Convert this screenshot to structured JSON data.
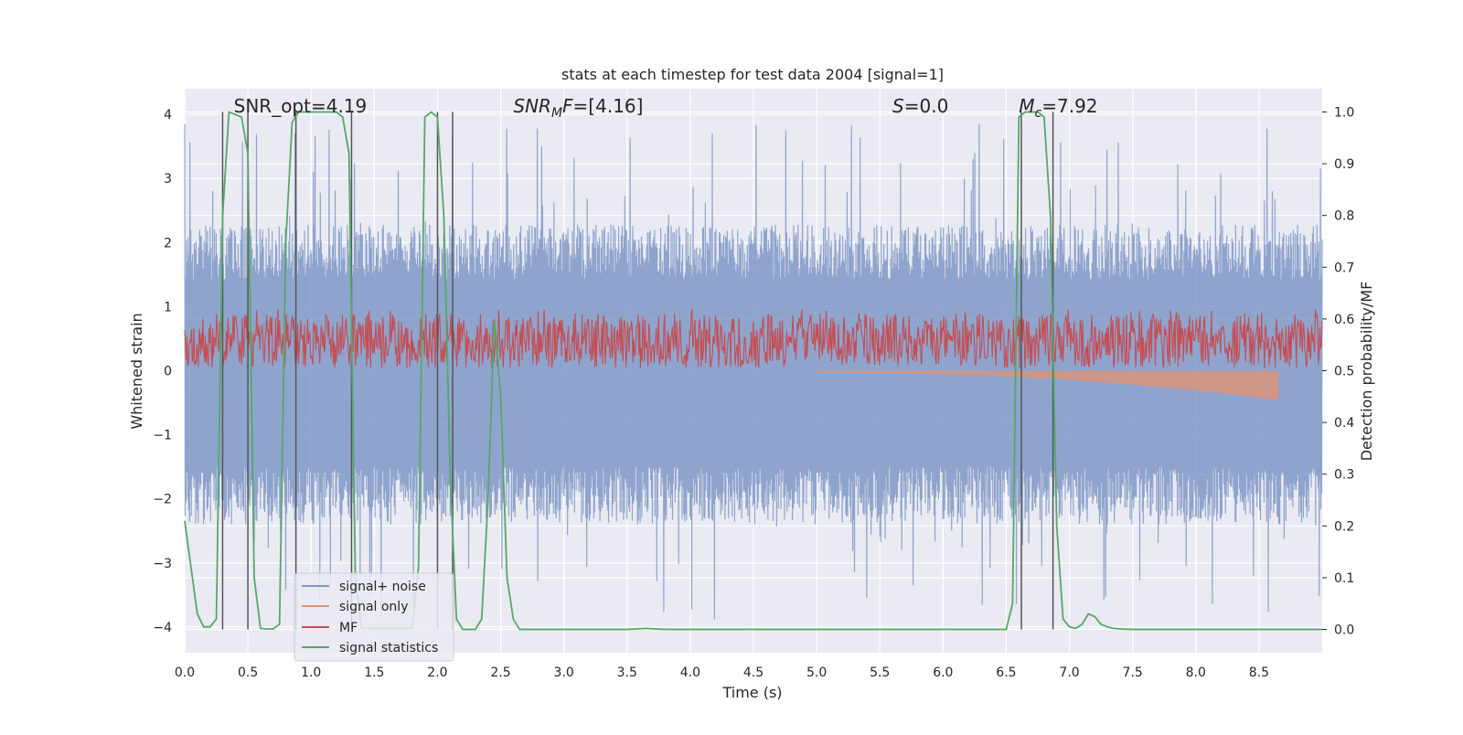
{
  "chart_data": {
    "type": "line",
    "title": "stats at each timestep for test data 2004 [signal=1]",
    "xlabel": "Time (s)",
    "ylabel_left": "Whitened strain",
    "ylabel_right": "Detection probability/MF",
    "xlim": [
      0,
      9.0
    ],
    "ylim_left": [
      -4.4,
      4.4
    ],
    "ylim_right": [
      -0.045,
      1.045
    ],
    "x_ticks": [
      "0.0",
      "0.5",
      "1.0",
      "1.5",
      "2.0",
      "2.5",
      "3.0",
      "3.5",
      "4.0",
      "4.5",
      "5.0",
      "5.5",
      "6.0",
      "6.5",
      "7.0",
      "7.5",
      "8.0",
      "8.5"
    ],
    "y_ticks_left": [
      "4",
      "3",
      "2",
      "1",
      "0",
      "−1",
      "−2",
      "−3",
      "−4"
    ],
    "y_ticks_right": [
      "1.0",
      "0.9",
      "0.8",
      "0.7",
      "0.6",
      "0.5",
      "0.4",
      "0.3",
      "0.2",
      "0.1",
      "0.0"
    ],
    "grid": true,
    "legend_position": "lower-left",
    "annotations": [
      {
        "text": "SNR_opt=4.19",
        "x": 0.2
      },
      {
        "text": "SNR_MF=[4.16]",
        "x": 2.6,
        "math": "snrmf"
      },
      {
        "text": "S=0.0",
        "x": 5.6,
        "math": "s"
      },
      {
        "text": "M_c=7.92",
        "x": 6.6,
        "math": "mc"
      }
    ],
    "vertical_lines": [
      0.3,
      0.5,
      0.88,
      1.32,
      2.0,
      2.12,
      6.62,
      6.87
    ],
    "series": [
      {
        "name": "signal+ noise",
        "axis": "left",
        "color": "#7f98c7",
        "envelope": {
          "pos_typical": 1.9,
          "pos_peak": 3.9,
          "neg_typical": -2.0,
          "neg_peak": -3.9
        }
      },
      {
        "name": "signal only",
        "axis": "left",
        "color": "#d9957b",
        "chirp": {
          "start": 5.0,
          "end": 8.65,
          "min_amplitude": 0.02,
          "max_amplitude": 0.45
        }
      },
      {
        "name": "MF",
        "axis": "right",
        "color": "#c44e52",
        "band": {
          "low": 0.505,
          "high": 0.61,
          "peak": 0.62
        }
      },
      {
        "name": "signal statistics",
        "axis": "right",
        "color": "#55a868",
        "x": [
          0.0,
          0.05,
          0.1,
          0.15,
          0.2,
          0.25,
          0.3,
          0.35,
          0.4,
          0.45,
          0.5,
          0.55,
          0.6,
          0.65,
          0.7,
          0.75,
          0.8,
          0.85,
          0.9,
          0.95,
          1.0,
          1.05,
          1.1,
          1.15,
          1.2,
          1.25,
          1.3,
          1.35,
          1.4,
          1.45,
          1.5,
          1.55,
          1.6,
          1.65,
          1.7,
          1.75,
          1.8,
          1.85,
          1.9,
          1.95,
          2.0,
          2.05,
          2.1,
          2.15,
          2.2,
          2.25,
          2.3,
          2.35,
          2.4,
          2.45,
          2.5,
          2.55,
          2.6,
          2.65,
          2.7,
          2.75,
          2.8,
          2.9,
          3.0,
          3.5,
          3.65,
          3.8,
          4.0,
          5.0,
          6.0,
          6.5,
          6.55,
          6.6,
          6.65,
          6.7,
          6.75,
          6.8,
          6.85,
          6.9,
          6.95,
          7.0,
          7.05,
          7.1,
          7.15,
          7.2,
          7.25,
          7.3,
          7.35,
          7.4,
          7.5,
          8.0,
          8.5,
          9.0
        ],
        "y": [
          0.21,
          0.12,
          0.03,
          0.005,
          0.005,
          0.02,
          0.8,
          1.0,
          0.995,
          0.99,
          0.92,
          0.1,
          0.002,
          0.001,
          0.001,
          0.01,
          0.75,
          0.98,
          1.0,
          1.0,
          1.0,
          1.0,
          1.0,
          1.0,
          1.0,
          0.99,
          0.92,
          0.1,
          0.002,
          0.002,
          0.002,
          0.002,
          0.002,
          0.002,
          0.002,
          0.002,
          0.002,
          0.12,
          0.99,
          1.0,
          0.99,
          0.8,
          0.3,
          0.02,
          0.0,
          0.0,
          0.0,
          0.02,
          0.25,
          0.6,
          0.45,
          0.1,
          0.02,
          0.0,
          0.0,
          0.0,
          0.0,
          0.0,
          0.0,
          0.0,
          0.002,
          0.0,
          0.0,
          0.0,
          0.0,
          0.0,
          0.05,
          0.99,
          1.0,
          1.0,
          1.0,
          0.99,
          0.8,
          0.2,
          0.02,
          0.005,
          0.002,
          0.01,
          0.03,
          0.025,
          0.01,
          0.005,
          0.002,
          0.001,
          0.0,
          0.0,
          0.0,
          0.0
        ]
      }
    ]
  },
  "colors": {
    "plot_background": "#eaeaf2",
    "grid": "#ffffff",
    "vertical_line": "#555555",
    "text": "#262626"
  }
}
